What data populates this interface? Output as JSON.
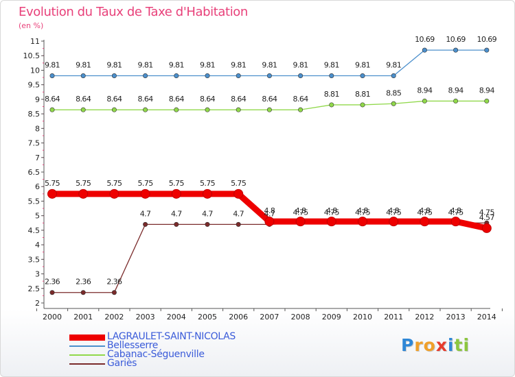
{
  "chart_data": {
    "type": "line",
    "title": "Evolution du Taux de Taxe d'Habitation",
    "unit_label": "(en %)",
    "x": [
      "2000",
      "2001",
      "2002",
      "2003",
      "2004",
      "2005",
      "2006",
      "2007",
      "2008",
      "2009",
      "2010",
      "2011",
      "2012",
      "2013",
      "2014"
    ],
    "ylim": [
      2,
      11
    ],
    "y_ticks": [
      "2",
      "2.5",
      "3",
      "3.5",
      "4",
      "4.5",
      "5",
      "5.5",
      "6",
      "6.5",
      "7",
      "7.5",
      "8",
      "8.5",
      "9",
      "9.5",
      "10",
      "10.5",
      "11"
    ],
    "grid": false,
    "series": [
      {
        "name": "LAGRAULET-SAINT-NICOLAS",
        "color": "#ee0000",
        "values": [
          5.75,
          5.75,
          5.75,
          5.75,
          5.75,
          5.75,
          5.75,
          4.8,
          4.8,
          4.8,
          4.8,
          4.8,
          4.8,
          4.8,
          4.57
        ],
        "labels": [
          "5.75",
          "5.75",
          "5.75",
          "5.75",
          "5.75",
          "5.75",
          "5.75",
          "4.8",
          "4.8",
          "4.8",
          "4.8",
          "4.8",
          "4.8",
          "4.8",
          "4.57"
        ]
      },
      {
        "name": "Bellesserre",
        "color": "#4b8fcc",
        "values": [
          9.81,
          9.81,
          9.81,
          9.81,
          9.81,
          9.81,
          9.81,
          9.81,
          9.81,
          9.81,
          9.81,
          9.81,
          10.69,
          10.69,
          10.69
        ],
        "labels": [
          "9.81",
          "9.81",
          "9.81",
          "9.81",
          "9.81",
          "9.81",
          "9.81",
          "9.81",
          "9.81",
          "9.81",
          "9.81",
          "9.81",
          "10.69",
          "10.69",
          "10.69"
        ]
      },
      {
        "name": "Cabanac-Séguenville",
        "color": "#90d84a",
        "values": [
          8.64,
          8.64,
          8.64,
          8.64,
          8.64,
          8.64,
          8.64,
          8.64,
          8.64,
          8.81,
          8.81,
          8.85,
          8.94,
          8.94,
          8.94
        ],
        "labels": [
          "8.64",
          "8.64",
          "8.64",
          "8.64",
          "8.64",
          "8.64",
          "8.64",
          "8.64",
          "8.64",
          "8.81",
          "8.81",
          "8.85",
          "8.94",
          "8.94",
          "8.94"
        ]
      },
      {
        "name": "Gariès",
        "color": "#7a2a2a",
        "values": [
          2.36,
          2.36,
          2.36,
          4.7,
          4.7,
          4.7,
          4.7,
          4.7,
          4.75,
          4.75,
          4.75,
          4.75,
          4.75,
          4.75,
          4.75
        ],
        "labels": [
          "2.36",
          "2.36",
          "2.36",
          "4.7",
          "4.7",
          "4.7",
          "4.7",
          "4.7",
          "4.75",
          "4.75",
          "4.75",
          "4.75",
          "4.75",
          "4.75",
          "4.75"
        ]
      }
    ]
  },
  "brand": {
    "letters": [
      "P",
      "r",
      "o",
      "x",
      "i",
      "t",
      "i"
    ],
    "colors": [
      "#2f87d6",
      "#f0a02a",
      "#f0a02a",
      "#e63c2d",
      "#2f87d6",
      "#8cc63f",
      "#8cc63f"
    ]
  }
}
